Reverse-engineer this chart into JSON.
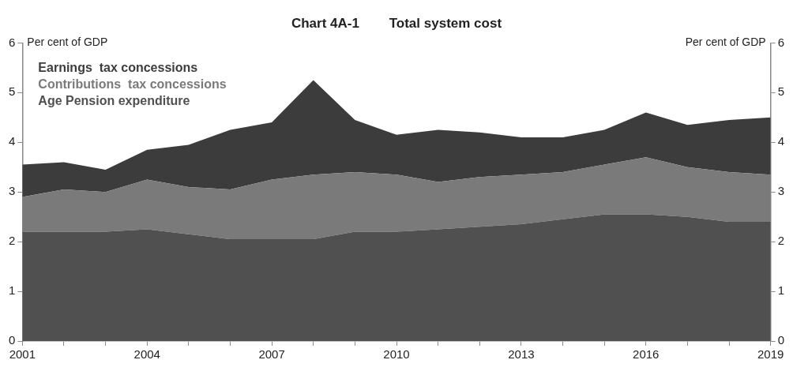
{
  "chart_data": {
    "type": "area",
    "title": "Chart 4A-1        Total system cost",
    "ylabel": "Per cent of GDP",
    "y2label": "Per cent of GDP",
    "stacked": true,
    "x": [
      2001,
      2002,
      2003,
      2004,
      2005,
      2006,
      2007,
      2008,
      2009,
      2010,
      2011,
      2012,
      2013,
      2014,
      2015,
      2016,
      2017,
      2018,
      2019
    ],
    "series": [
      {
        "name": "Age Pension expenditure",
        "color": "#505050",
        "values": [
          2.2,
          2.2,
          2.2,
          2.25,
          2.15,
          2.05,
          2.05,
          2.05,
          2.2,
          2.2,
          2.25,
          2.3,
          2.35,
          2.45,
          2.55,
          2.55,
          2.5,
          2.4,
          2.4
        ]
      },
      {
        "name": "Contributions  tax concessions",
        "color": "#7a7a7a",
        "values": [
          0.7,
          0.85,
          0.8,
          1.0,
          0.95,
          1.0,
          1.2,
          1.3,
          1.2,
          1.15,
          0.95,
          1.0,
          1.0,
          0.95,
          1.0,
          1.15,
          1.0,
          1.0,
          0.95
        ]
      },
      {
        "name": "Earnings  tax concessions",
        "color": "#3c3c3c",
        "values": [
          0.65,
          0.55,
          0.45,
          0.6,
          0.85,
          1.2,
          1.15,
          1.9,
          1.05,
          0.8,
          1.05,
          0.9,
          0.75,
          0.7,
          0.7,
          0.9,
          0.85,
          1.05,
          1.15
        ]
      }
    ],
    "xlim": [
      2001,
      2019
    ],
    "xticks": [
      2001,
      {
        "value": 2002,
        "label": null
      },
      {
        "value": 2003,
        "label": null
      },
      2004,
      {
        "value": 2005,
        "label": null
      },
      {
        "value": 2006,
        "label": null
      },
      2007,
      {
        "value": 2008,
        "label": null
      },
      {
        "value": 2009,
        "label": null
      },
      2010,
      {
        "value": 2011,
        "label": null
      },
      {
        "value": 2012,
        "label": null
      },
      2013,
      {
        "value": 2014,
        "label": null
      },
      {
        "value": 2015,
        "label": null
      },
      2016,
      {
        "value": 2017,
        "label": null
      },
      {
        "value": 2018,
        "label": null
      },
      2019
    ],
    "ylim": [
      0,
      6
    ],
    "yticks": [
      0,
      1,
      2,
      3,
      4,
      5,
      6
    ],
    "y2lim": [
      0,
      6
    ],
    "y2ticks": [
      0,
      1,
      2,
      3,
      4,
      5,
      6
    ],
    "grid": false,
    "legend": "top left"
  }
}
